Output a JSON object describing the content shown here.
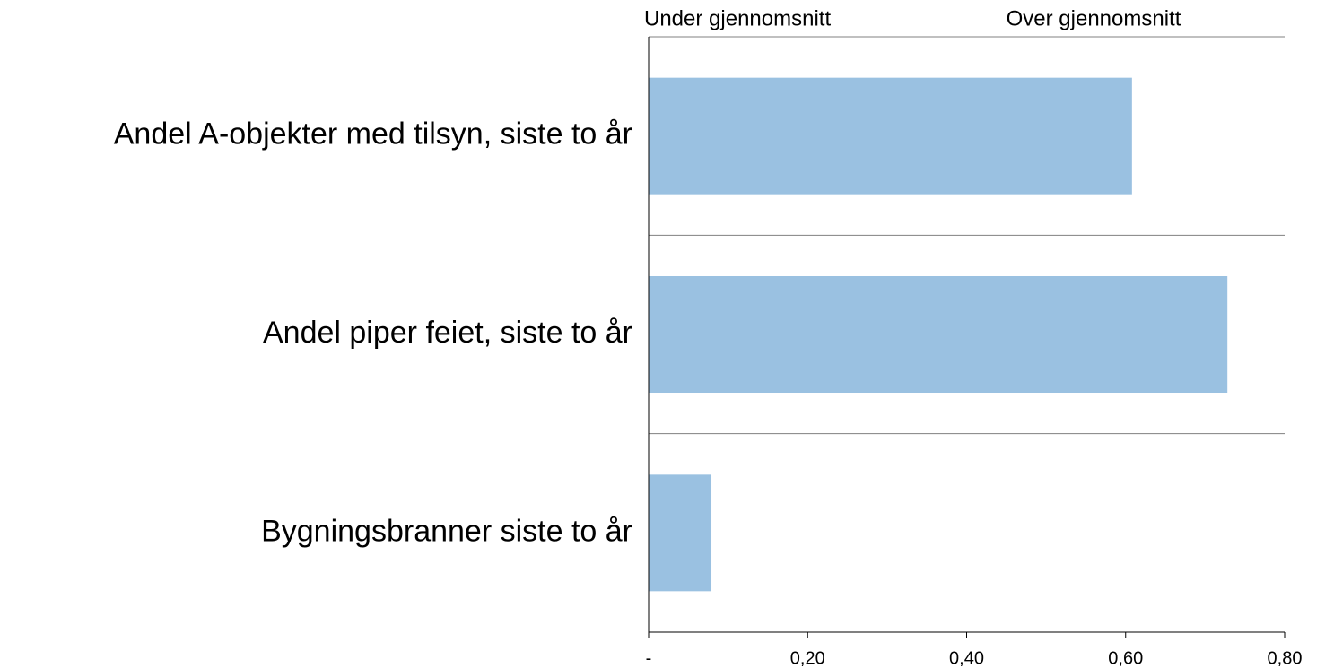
{
  "chart_data": {
    "type": "bar",
    "orientation": "horizontal",
    "annotations": [
      "Under gjennomsnitt",
      "Over gjennomsnitt"
    ],
    "categories": [
      "Andel A-objekter med tilsyn, siste to år",
      "Andel piper feiet, siste to år",
      "Bygningsbranner siste to år"
    ],
    "values": [
      0.608,
      0.728,
      0.079
    ],
    "color": "#9ac1e1",
    "xlim": [
      0,
      0.8
    ],
    "xticks": [
      {
        "value": 0,
        "label": "-"
      },
      {
        "value": 0.2,
        "label": "0,20"
      },
      {
        "value": 0.4,
        "label": "0,40"
      },
      {
        "value": 0.6,
        "label": "0,60"
      },
      {
        "value": 0.8,
        "label": "0,80"
      }
    ]
  }
}
